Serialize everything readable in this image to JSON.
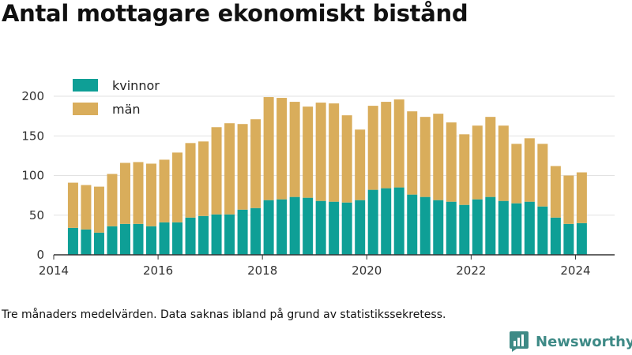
{
  "title": "Antal mottagare ekonomiskt bistånd",
  "note": "Tre månaders medelvärden. Data saknas ibland på grund av statistikssekretess.",
  "brand": {
    "name": "Newsworthy",
    "icon": "newsworthy-logo-icon",
    "color": "#3e8a86"
  },
  "colors": {
    "kvinnor": "#0e9f96",
    "man": "#d9ad5b",
    "grid": "#e2e2e2",
    "axis": "#333333"
  },
  "chart_data": {
    "type": "bar",
    "stacked": true,
    "title": "Antal mottagare ekonomiskt bistånd",
    "xlabel": "",
    "ylabel": "",
    "ylim": [
      0,
      210
    ],
    "xlim": [
      2014,
      2024.75
    ],
    "y_ticks": [
      0,
      50,
      100,
      150,
      200
    ],
    "x_ticks": [
      2014,
      2016,
      2018,
      2020,
      2022,
      2024
    ],
    "grid": true,
    "legend_position": "top-left",
    "x": [
      2014.37,
      2014.62,
      2014.87,
      2015.12,
      2015.37,
      2015.62,
      2015.87,
      2016.12,
      2016.37,
      2016.62,
      2016.87,
      2017.12,
      2017.37,
      2017.62,
      2017.87,
      2018.12,
      2018.37,
      2018.62,
      2018.87,
      2019.12,
      2019.37,
      2019.62,
      2019.87,
      2020.12,
      2020.37,
      2020.62,
      2020.87,
      2021.12,
      2021.37,
      2021.62,
      2021.87,
      2022.12,
      2022.37,
      2022.62,
      2022.87,
      2023.12,
      2023.37,
      2023.62,
      2023.87,
      2024.12
    ],
    "series": [
      {
        "name": "kvinnor",
        "color": "#0e9f96",
        "values": [
          34,
          32,
          28,
          36,
          39,
          39,
          36,
          41,
          41,
          47,
          49,
          51,
          51,
          57,
          59,
          69,
          70,
          73,
          72,
          68,
          67,
          66,
          69,
          82,
          84,
          85,
          76,
          73,
          69,
          67,
          63,
          70,
          73,
          68,
          65,
          67,
          61,
          47,
          39,
          40
        ]
      },
      {
        "name": "män",
        "color": "#d9ad5b",
        "values": [
          57,
          56,
          58,
          66,
          77,
          78,
          79,
          79,
          88,
          94,
          94,
          110,
          115,
          108,
          112,
          130,
          128,
          120,
          115,
          124,
          124,
          110,
          89,
          106,
          109,
          111,
          105,
          101,
          109,
          100,
          89,
          93,
          101,
          95,
          75,
          80,
          79,
          65,
          61,
          64
        ]
      }
    ]
  }
}
